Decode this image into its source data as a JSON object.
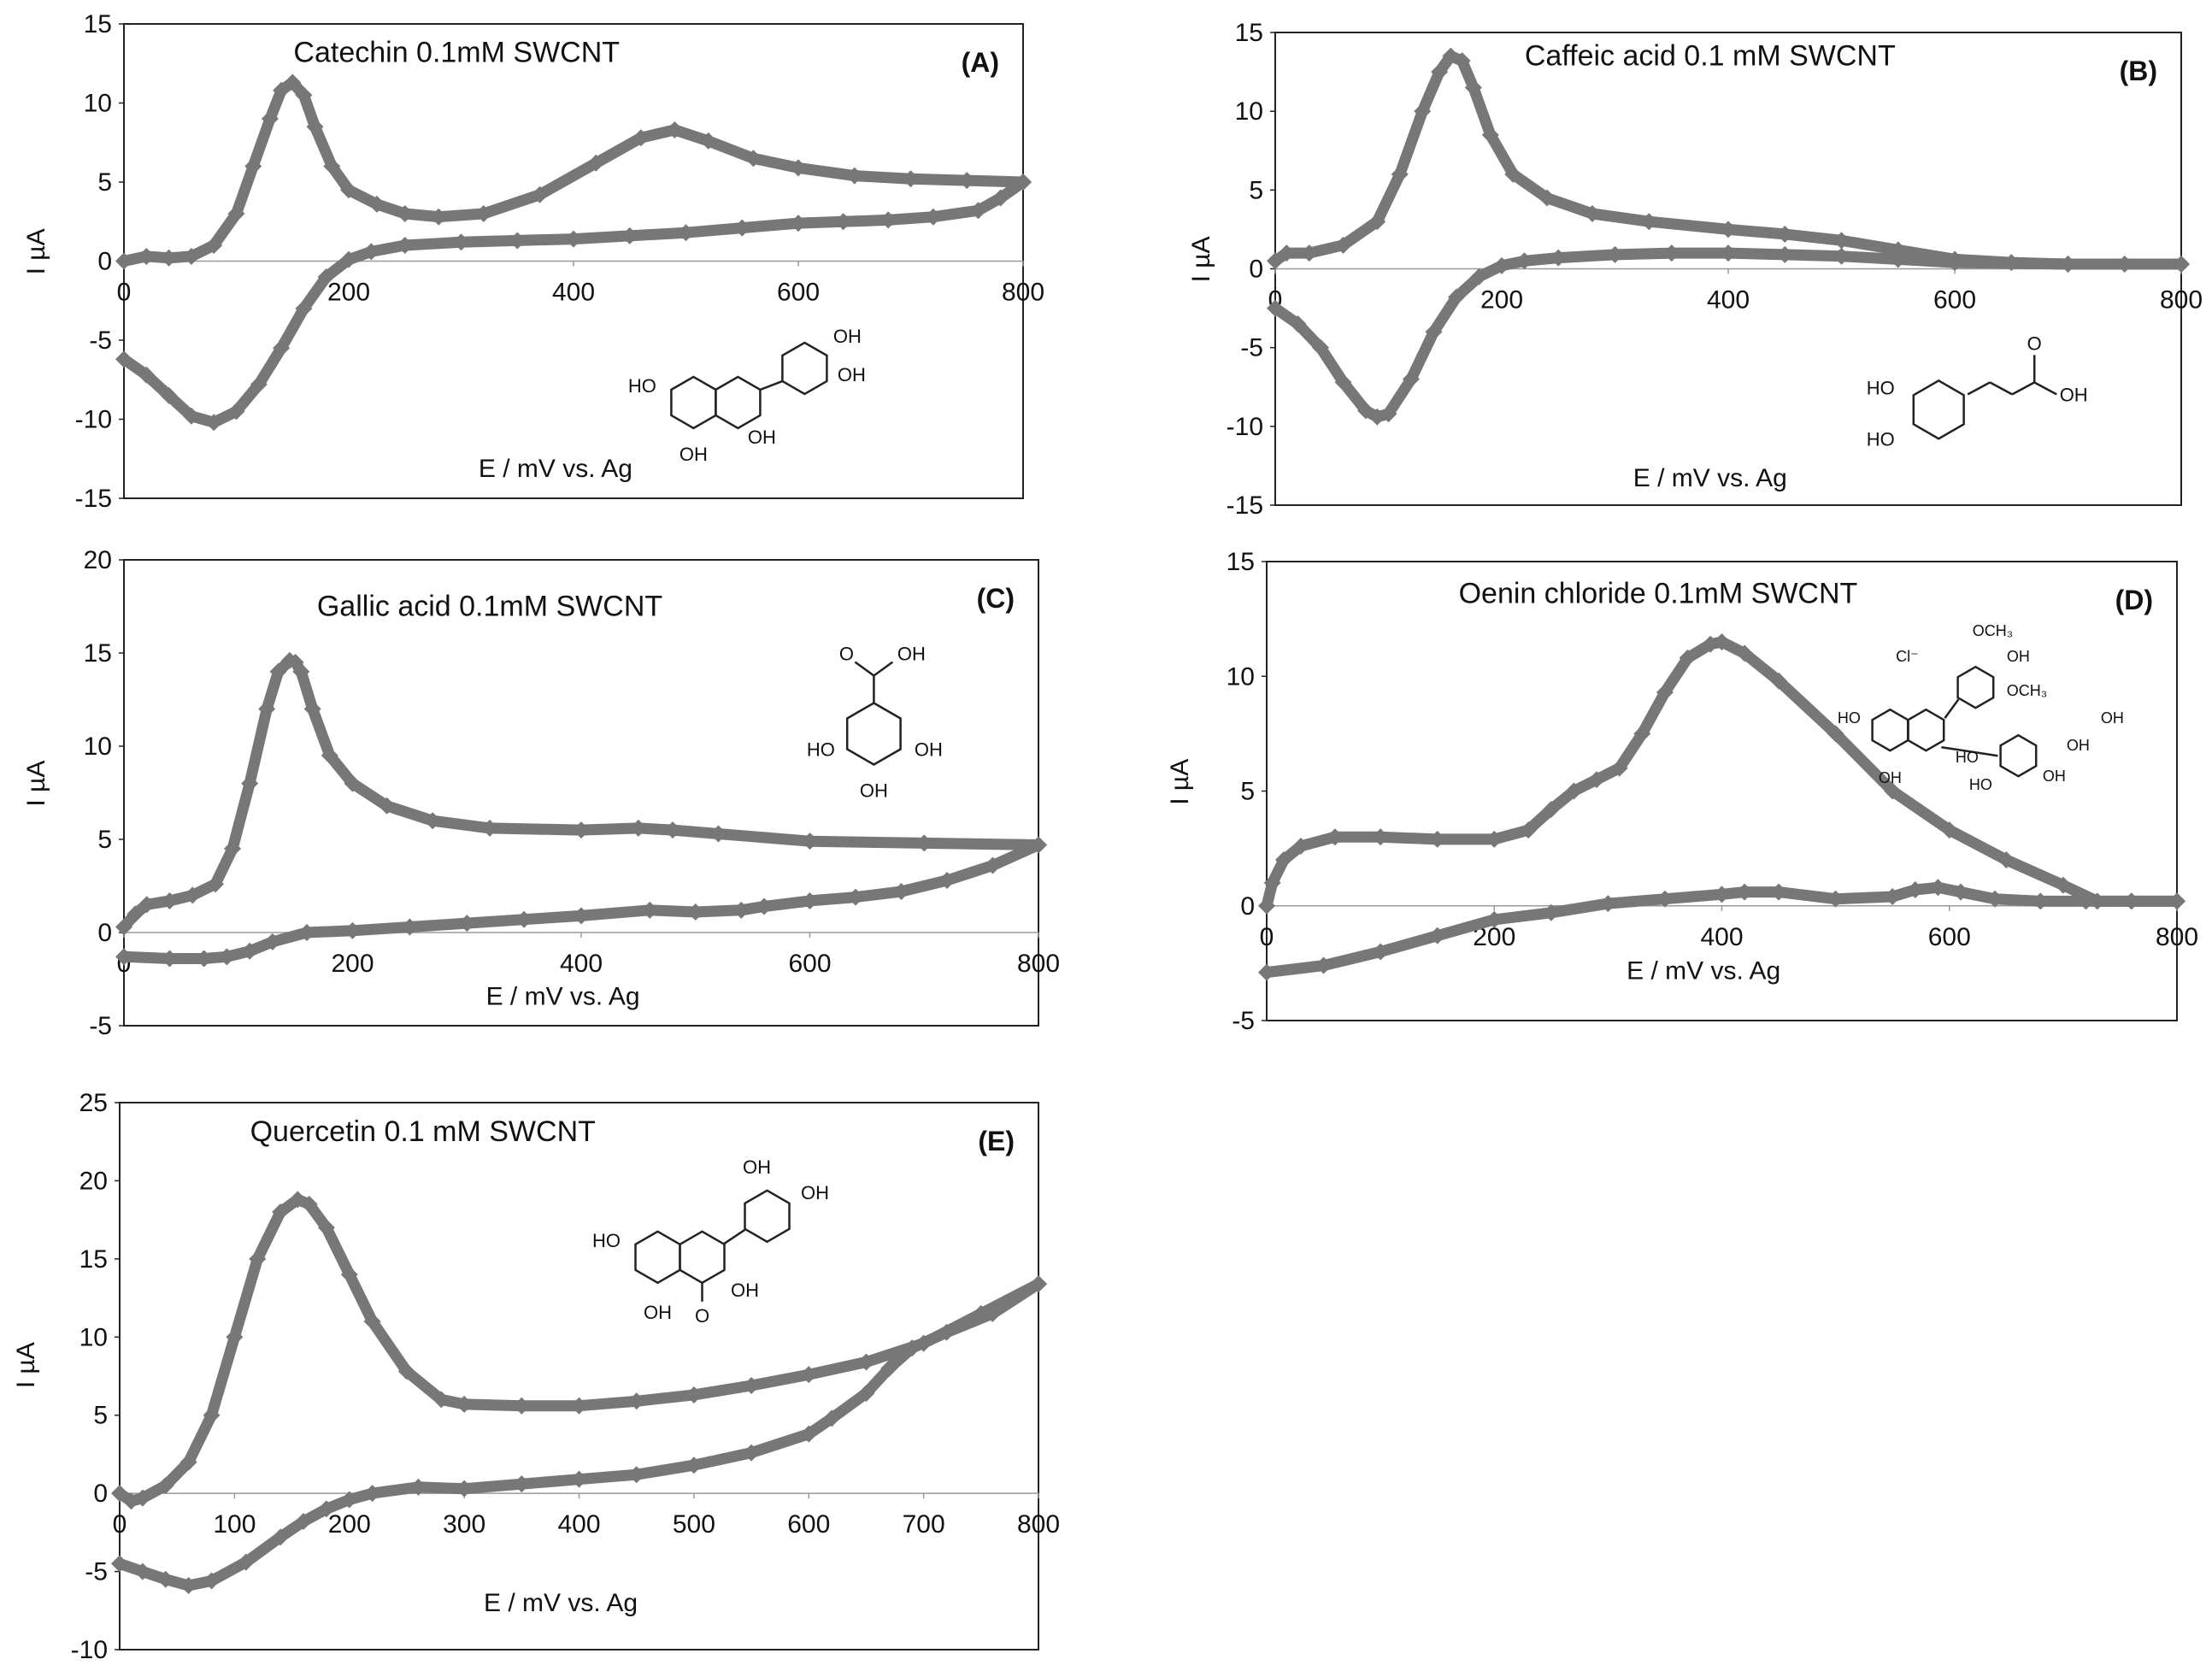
{
  "figure": {
    "description_free": true,
    "series_color": "#777777",
    "axis_color": "#222222",
    "text_color": "#111111",
    "grid": false
  },
  "chart_data": [
    {
      "id": "A",
      "type": "line",
      "title": "Catechin 0.1mM SWCNT",
      "panel_label": "(A)",
      "xlabel": "E / mV vs. Ag",
      "ylabel": "I µA",
      "xlim": [
        0,
        800
      ],
      "ylim": [
        -15,
        15
      ],
      "xticks": [
        0,
        200,
        400,
        600,
        800
      ],
      "yticks": [
        -15,
        -10,
        -5,
        0,
        5,
        10,
        15
      ],
      "structure": "catechin",
      "series": [
        {
          "name": "forward",
          "x": [
            0,
            20,
            40,
            60,
            80,
            100,
            115,
            130,
            140,
            150,
            160,
            170,
            185,
            200,
            225,
            250,
            280,
            320,
            370,
            420,
            460,
            490,
            520,
            560,
            600,
            650,
            700,
            750,
            800
          ],
          "y": [
            0,
            0.3,
            0.2,
            0.3,
            1,
            3,
            6,
            9,
            10.8,
            11.3,
            10.5,
            8.5,
            6,
            4.5,
            3.6,
            3,
            2.8,
            3,
            4.2,
            6.2,
            7.8,
            8.3,
            7.6,
            6.5,
            5.9,
            5.4,
            5.2,
            5.1,
            5
          ]
        },
        {
          "name": "reverse",
          "x": [
            800,
            780,
            760,
            720,
            680,
            640,
            600,
            550,
            500,
            450,
            400,
            350,
            300,
            250,
            220,
            200,
            180,
            160,
            140,
            120,
            100,
            80,
            60,
            40,
            20,
            0
          ],
          "y": [
            5,
            4,
            3.2,
            2.8,
            2.6,
            2.5,
            2.4,
            2.1,
            1.8,
            1.6,
            1.4,
            1.3,
            1.2,
            1,
            0.6,
            0.1,
            -1,
            -3,
            -5.5,
            -7.8,
            -9.5,
            -10.2,
            -9.8,
            -8.5,
            -7.2,
            -6.2
          ]
        }
      ]
    },
    {
      "id": "B",
      "type": "line",
      "title": "Caffeic acid 0.1 mM SWCNT",
      "panel_label": "(B)",
      "xlabel": "E / mV vs. Ag",
      "ylabel": "I µA",
      "xlim": [
        0,
        800
      ],
      "ylim": [
        -15,
        15
      ],
      "xticks": [
        0,
        200,
        400,
        600,
        800
      ],
      "yticks": [
        -15,
        -10,
        -5,
        0,
        5,
        10,
        15
      ],
      "structure": "caffeic",
      "series": [
        {
          "name": "forward",
          "x": [
            0,
            10,
            30,
            60,
            90,
            110,
            130,
            145,
            155,
            165,
            175,
            190,
            210,
            240,
            280,
            330,
            400,
            450,
            500,
            550,
            600,
            650,
            700,
            750,
            800
          ],
          "y": [
            0.5,
            1,
            1,
            1.5,
            3,
            6,
            10,
            12.5,
            13.5,
            13.2,
            11.5,
            8.5,
            6,
            4.5,
            3.5,
            3,
            2.5,
            2.2,
            1.8,
            1.2,
            0.6,
            0.4,
            0.3,
            0.3,
            0.3
          ]
        },
        {
          "name": "reverse",
          "x": [
            800,
            700,
            600,
            550,
            500,
            450,
            400,
            350,
            300,
            250,
            220,
            200,
            180,
            160,
            140,
            120,
            100,
            90,
            80,
            60,
            40,
            20,
            0
          ],
          "y": [
            0.3,
            0.3,
            0.4,
            0.6,
            0.8,
            0.9,
            1,
            1,
            0.9,
            0.7,
            0.5,
            0.2,
            -0.5,
            -1.8,
            -4,
            -7,
            -9.2,
            -9.4,
            -9,
            -7.2,
            -5,
            -3.5,
            -2.5
          ]
        }
      ]
    },
    {
      "id": "C",
      "type": "line",
      "title": "Gallic acid 0.1mM SWCNT",
      "panel_label": "(C)",
      "xlabel": "E / mV vs. Ag",
      "ylabel": "I µA",
      "xlim": [
        0,
        800
      ],
      "ylim": [
        -5,
        20
      ],
      "xticks": [
        0,
        200,
        400,
        600,
        800
      ],
      "yticks": [
        -5,
        0,
        5,
        10,
        15,
        20
      ],
      "structure": "gallic",
      "series": [
        {
          "name": "forward",
          "x": [
            0,
            10,
            20,
            40,
            60,
            80,
            95,
            110,
            125,
            135,
            145,
            150,
            155,
            165,
            180,
            200,
            230,
            270,
            320,
            400,
            450,
            480,
            520,
            600,
            700,
            800
          ],
          "y": [
            0.3,
            1,
            1.5,
            1.7,
            2,
            2.6,
            4.5,
            8,
            12,
            14,
            14.6,
            14.5,
            14,
            12,
            9.5,
            8,
            6.8,
            6,
            5.6,
            5.5,
            5.6,
            5.5,
            5.3,
            4.9,
            4.8,
            4.7
          ]
        },
        {
          "name": "reverse",
          "x": [
            800,
            760,
            720,
            680,
            640,
            600,
            560,
            540,
            500,
            460,
            400,
            350,
            300,
            250,
            200,
            160,
            130,
            110,
            90,
            70,
            40,
            0
          ],
          "y": [
            4.7,
            3.6,
            2.8,
            2.2,
            1.9,
            1.7,
            1.4,
            1.2,
            1.1,
            1.2,
            0.9,
            0.7,
            0.5,
            0.3,
            0.1,
            0,
            -0.5,
            -1,
            -1.3,
            -1.4,
            -1.4,
            -1.3
          ]
        }
      ]
    },
    {
      "id": "D",
      "type": "line",
      "title": "Oenin chloride 0.1mM SWCNT",
      "panel_label": "(D)",
      "xlabel": "E / mV vs. Ag",
      "ylabel": "I µA",
      "xlim": [
        0,
        800
      ],
      "ylim": [
        -5,
        15
      ],
      "xticks": [
        0,
        200,
        400,
        600,
        800
      ],
      "yticks": [
        -5,
        0,
        5,
        10,
        15
      ],
      "structure": "oenin",
      "series": [
        {
          "name": "forward",
          "x": [
            0,
            5,
            15,
            30,
            60,
            100,
            150,
            200,
            230,
            250,
            270,
            290,
            310,
            330,
            350,
            370,
            390,
            400,
            420,
            450,
            500,
            550,
            600,
            650,
            700,
            730,
            760,
            800
          ],
          "y": [
            0,
            1,
            2,
            2.6,
            3,
            3,
            2.9,
            2.9,
            3.3,
            4.2,
            5,
            5.5,
            6,
            7.5,
            9.3,
            10.8,
            11.4,
            11.5,
            11,
            9.8,
            7.5,
            5,
            3.3,
            2,
            0.9,
            0.2,
            0.2,
            0.2
          ]
        },
        {
          "name": "reverse",
          "x": [
            800,
            760,
            720,
            680,
            640,
            610,
            590,
            570,
            550,
            500,
            450,
            420,
            400,
            350,
            300,
            250,
            200,
            150,
            100,
            50,
            0
          ],
          "y": [
            0.2,
            0.2,
            0.2,
            0.2,
            0.3,
            0.6,
            0.8,
            0.7,
            0.4,
            0.3,
            0.6,
            0.6,
            0.5,
            0.3,
            0.1,
            -0.3,
            -0.6,
            -1.3,
            -2,
            -2.6,
            -2.9
          ]
        }
      ]
    },
    {
      "id": "E",
      "type": "line",
      "title": "Quercetin 0.1 mM SWCNT",
      "panel_label": "(E)",
      "xlabel": "E / mV  vs. Ag",
      "ylabel": "I µA",
      "xlim": [
        0,
        800
      ],
      "ylim": [
        -10,
        25
      ],
      "xticks": [
        0,
        100,
        200,
        300,
        400,
        500,
        600,
        700,
        800
      ],
      "yticks": [
        -10,
        -5,
        0,
        5,
        10,
        15,
        20,
        25
      ],
      "structure": "quercetin",
      "series": [
        {
          "name": "forward",
          "x": [
            0,
            10,
            20,
            40,
            60,
            80,
            100,
            120,
            140,
            155,
            165,
            180,
            200,
            220,
            250,
            280,
            300,
            350,
            400,
            450,
            500,
            550,
            600,
            650,
            700,
            750,
            800
          ],
          "y": [
            0,
            -0.5,
            -0.3,
            0.5,
            2,
            5,
            10,
            15,
            18,
            18.8,
            18.5,
            17,
            14,
            11,
            7.8,
            6,
            5.7,
            5.6,
            5.6,
            5.9,
            6.3,
            6.9,
            7.6,
            8.4,
            9.6,
            11.5,
            13.4
          ]
        },
        {
          "name": "reverse",
          "x": [
            800,
            760,
            720,
            690,
            670,
            650,
            620,
            600,
            550,
            500,
            450,
            400,
            350,
            300,
            260,
            220,
            200,
            180,
            160,
            140,
            110,
            80,
            60,
            40,
            20,
            0
          ],
          "y": [
            13.4,
            11.5,
            10.3,
            9.3,
            8,
            6.4,
            4.8,
            3.8,
            2.6,
            1.8,
            1.2,
            0.9,
            0.6,
            0.3,
            0.4,
            0,
            -0.4,
            -1,
            -1.8,
            -2.8,
            -4.4,
            -5.6,
            -5.9,
            -5.5,
            -5,
            -4.5
          ]
        }
      ]
    }
  ],
  "structure_labels": {
    "catechin": [
      "HO",
      "OH",
      "OH",
      "OH",
      "OH"
    ],
    "caffeic": [
      "HO",
      "HO",
      "O",
      "OH"
    ],
    "gallic": [
      "O",
      "OH",
      "HO",
      "OH",
      "OH"
    ],
    "oenin": [
      "Cl⁻",
      "OCH₃",
      "OH",
      "OCH₃",
      "HO",
      "OH",
      "HO",
      "HO",
      "OH",
      "OH",
      "OH"
    ],
    "quercetin": [
      "OH",
      "OH",
      "HO",
      "OH",
      "OH",
      "O"
    ]
  }
}
